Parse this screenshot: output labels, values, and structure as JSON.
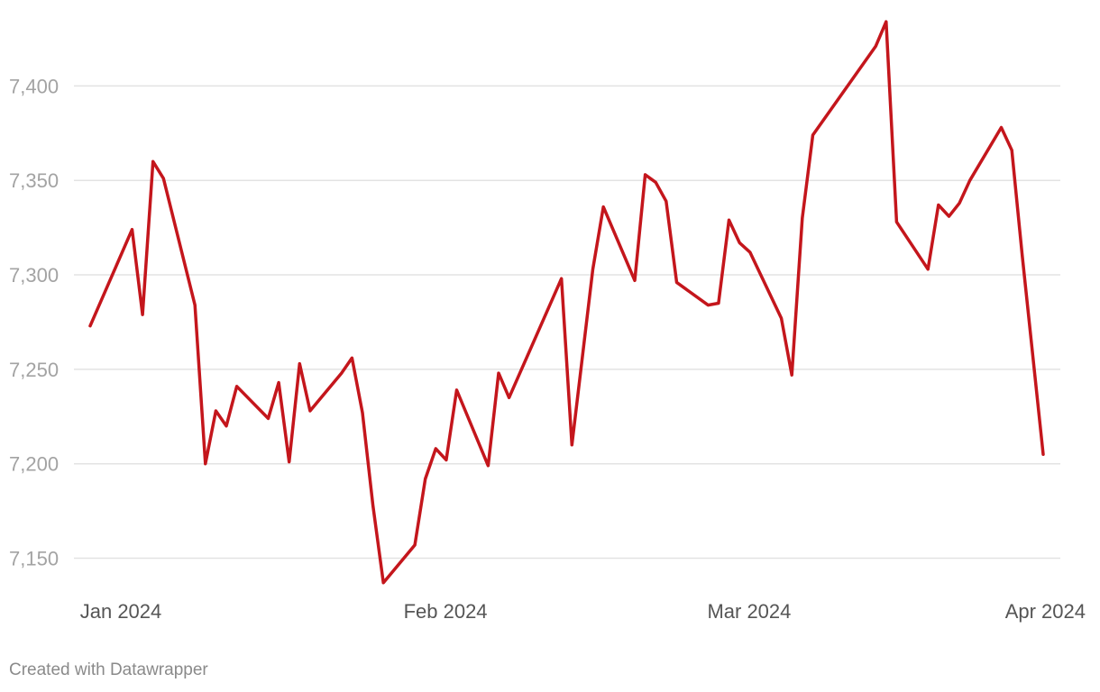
{
  "footer": {
    "credit": "Created with Datawrapper"
  },
  "colors": {
    "line": "#c4161c",
    "grid": "#e3e3e3",
    "ytick": "#a3a3a3",
    "xtick": "#555555"
  },
  "chart_data": {
    "type": "line",
    "ylim": [
      7135,
      7435
    ],
    "yticks": [
      7150,
      7200,
      7250,
      7300,
      7350,
      7400
    ],
    "ytick_labels": [
      "7,150",
      "7,200",
      "7,250",
      "7,300",
      "7,350",
      "7,400"
    ],
    "xlim": [
      "2023-12-31",
      "2024-04-01"
    ],
    "xticks": [
      "2024-01-01",
      "2024-02-01",
      "2024-03-01",
      "2024-04-01"
    ],
    "xtick_labels": [
      "Jan 2024",
      "Feb 2024",
      "Mar 2024",
      "Apr 2024"
    ],
    "grid": true,
    "series": [
      {
        "values": [
          [
            "2024-01-01",
            7273
          ],
          [
            "2024-01-05",
            7324
          ],
          [
            "2024-01-06",
            7279
          ],
          [
            "2024-01-07",
            7360
          ],
          [
            "2024-01-08",
            7351
          ],
          [
            "2024-01-11",
            7284
          ],
          [
            "2024-01-12",
            7200
          ],
          [
            "2024-01-13",
            7228
          ],
          [
            "2024-01-14",
            7220
          ],
          [
            "2024-01-15",
            7241
          ],
          [
            "2024-01-18",
            7224
          ],
          [
            "2024-01-19",
            7243
          ],
          [
            "2024-01-20",
            7201
          ],
          [
            "2024-01-21",
            7253
          ],
          [
            "2024-01-22",
            7228
          ],
          [
            "2024-01-25",
            7248
          ],
          [
            "2024-01-26",
            7256
          ],
          [
            "2024-01-27",
            7227
          ],
          [
            "2024-01-28",
            7178
          ],
          [
            "2024-01-29",
            7137
          ],
          [
            "2024-02-01",
            7157
          ],
          [
            "2024-02-02",
            7192
          ],
          [
            "2024-02-03",
            7208
          ],
          [
            "2024-02-04",
            7202
          ],
          [
            "2024-02-05",
            7239
          ],
          [
            "2024-02-08",
            7199
          ],
          [
            "2024-02-09",
            7248
          ],
          [
            "2024-02-10",
            7235
          ],
          [
            "2024-02-15",
            7298
          ],
          [
            "2024-02-16",
            7210
          ],
          [
            "2024-02-18",
            7303
          ],
          [
            "2024-02-19",
            7336
          ],
          [
            "2024-02-22",
            7297
          ],
          [
            "2024-02-23",
            7353
          ],
          [
            "2024-02-24",
            7349
          ],
          [
            "2024-02-25",
            7339
          ],
          [
            "2024-02-26",
            7296
          ],
          [
            "2024-02-29",
            7284
          ],
          [
            "2024-03-01",
            7285
          ],
          [
            "2024-03-02",
            7329
          ],
          [
            "2024-03-03",
            7317
          ],
          [
            "2024-03-04",
            7312
          ],
          [
            "2024-03-07",
            7277
          ],
          [
            "2024-03-08",
            7247
          ],
          [
            "2024-03-09",
            7330
          ],
          [
            "2024-03-10",
            7374
          ],
          [
            "2024-03-16",
            7421
          ],
          [
            "2024-03-17",
            7434
          ],
          [
            "2024-03-18",
            7328
          ],
          [
            "2024-03-21",
            7303
          ],
          [
            "2024-03-22",
            7337
          ],
          [
            "2024-03-23",
            7331
          ],
          [
            "2024-03-24",
            7338
          ],
          [
            "2024-03-25",
            7350
          ],
          [
            "2024-03-28",
            7378
          ],
          [
            "2024-03-29",
            7366
          ],
          [
            "2024-03-30",
            7310
          ],
          [
            "2024-04-01",
            7205
          ]
        ]
      }
    ]
  }
}
